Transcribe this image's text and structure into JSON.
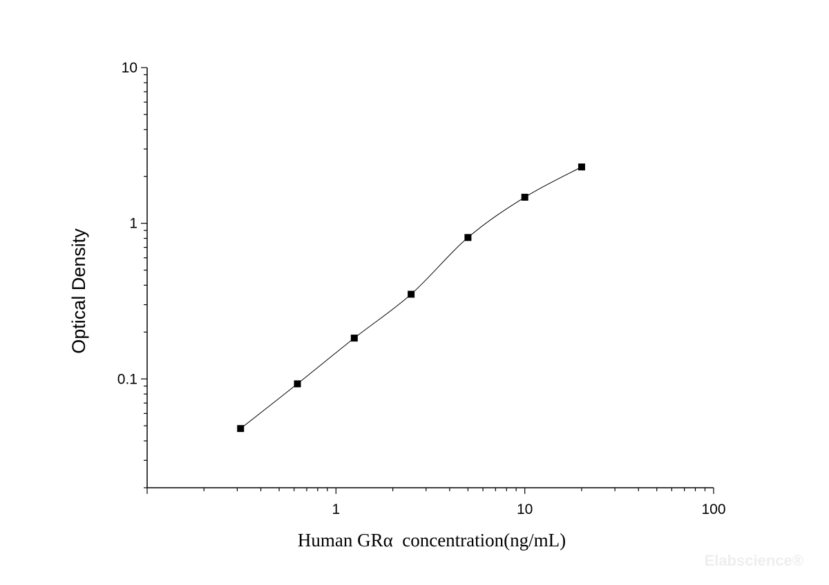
{
  "chart_data": {
    "type": "scatter",
    "xlabel": "Human GRα  concentration(ng/mL)",
    "ylabel": "Optical Density",
    "xscale": "log",
    "yscale": "log",
    "xlim": [
      0.1,
      100
    ],
    "ylim": [
      0.02,
      10
    ],
    "x_ticks": [
      1,
      10,
      100
    ],
    "x_tick_labels": [
      "1",
      "10",
      "100"
    ],
    "y_ticks": [
      0.1,
      1,
      10
    ],
    "y_tick_labels": [
      "0.1",
      "1",
      "10"
    ],
    "grid": false,
    "fit_curve": true,
    "series": [
      {
        "x": [
          0.3125,
          0.625,
          1.25,
          2.5,
          5,
          10,
          20
        ],
        "y": [
          0.048,
          0.093,
          0.183,
          0.35,
          0.81,
          1.47,
          2.3
        ],
        "marker": "square",
        "color": "#000000"
      }
    ]
  },
  "watermark": "Elabscience®"
}
